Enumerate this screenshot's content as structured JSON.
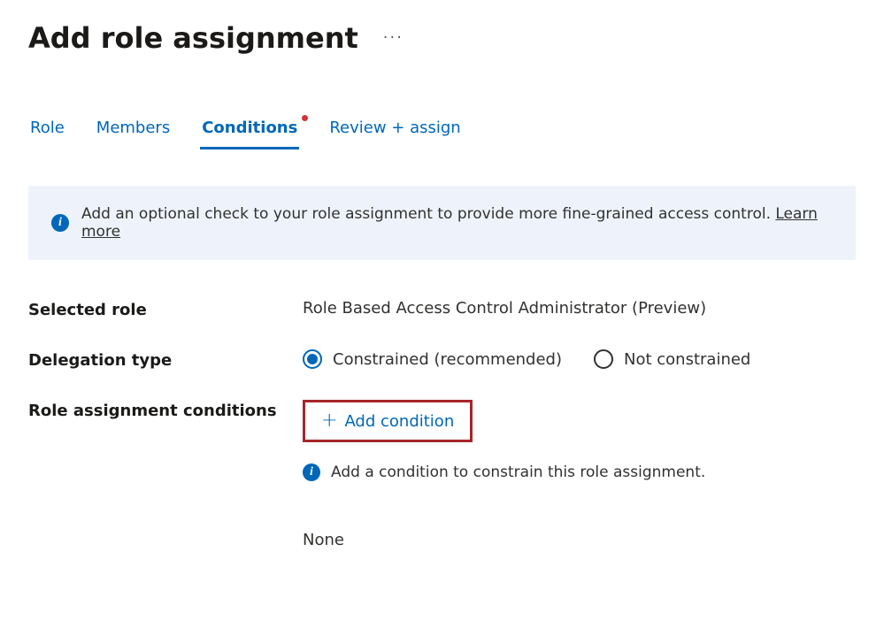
{
  "header": {
    "title": "Add role assignment"
  },
  "tabs": [
    {
      "label": "Role",
      "active": false,
      "has_indicator": false
    },
    {
      "label": "Members",
      "active": false,
      "has_indicator": false
    },
    {
      "label": "Conditions",
      "active": true,
      "has_indicator": true
    },
    {
      "label": "Review + assign",
      "active": false,
      "has_indicator": false
    }
  ],
  "banner": {
    "text": "Add an optional check to your role assignment to provide more fine-grained access control. ",
    "link_text": "Learn more"
  },
  "fields": {
    "selected_role": {
      "label": "Selected role",
      "value": "Role Based Access Control Administrator (Preview)"
    },
    "delegation_type": {
      "label": "Delegation type",
      "options": [
        {
          "label": "Constrained (recommended)",
          "selected": true
        },
        {
          "label": "Not constrained",
          "selected": false
        }
      ]
    },
    "conditions": {
      "label": "Role assignment conditions",
      "add_button_label": "Add condition",
      "hint": "Add a condition to constrain this role assignment.",
      "none_label": "None"
    }
  },
  "colors": {
    "accent": "#0067b8",
    "banner_bg": "#eef3fb",
    "highlight_border": "#a7262a",
    "indicator": "#d13438",
    "text": "#323130"
  }
}
